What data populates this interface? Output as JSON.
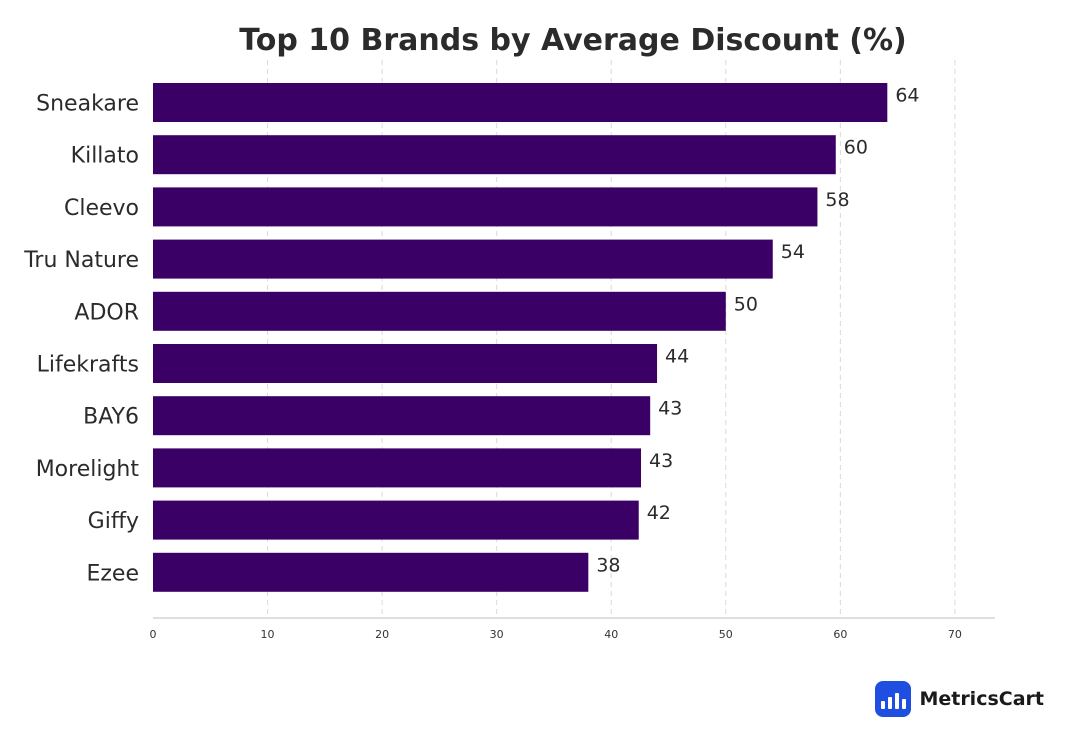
{
  "chart_data": {
    "type": "bar",
    "orientation": "horizontal",
    "title": "Top 10 Brands by Average Discount (%)",
    "categories": [
      "Sneakare",
      "Killato",
      "Cleevo",
      "Tru Nature",
      "ADOR",
      "Lifekrafts",
      "BAY6",
      "Morelight",
      "Giffy",
      "Ezee"
    ],
    "values": [
      64,
      60,
      58,
      54,
      50,
      44,
      43,
      43,
      42,
      38
    ],
    "bar_values": [
      64.1,
      59.6,
      58.0,
      54.1,
      50.0,
      44.0,
      43.4,
      42.6,
      42.4,
      38.0
    ],
    "xlim": [
      0,
      73.5
    ],
    "xticks": [
      0,
      10,
      20,
      30,
      40,
      50,
      60,
      70
    ],
    "xlabel": "",
    "ylabel": "",
    "grid": "vertical-dashed",
    "bar_color": "#3b0066"
  },
  "brand": {
    "name": "MetricsCart",
    "icon": "bar-chart-icon",
    "badge_color": "#1f4fe0"
  }
}
